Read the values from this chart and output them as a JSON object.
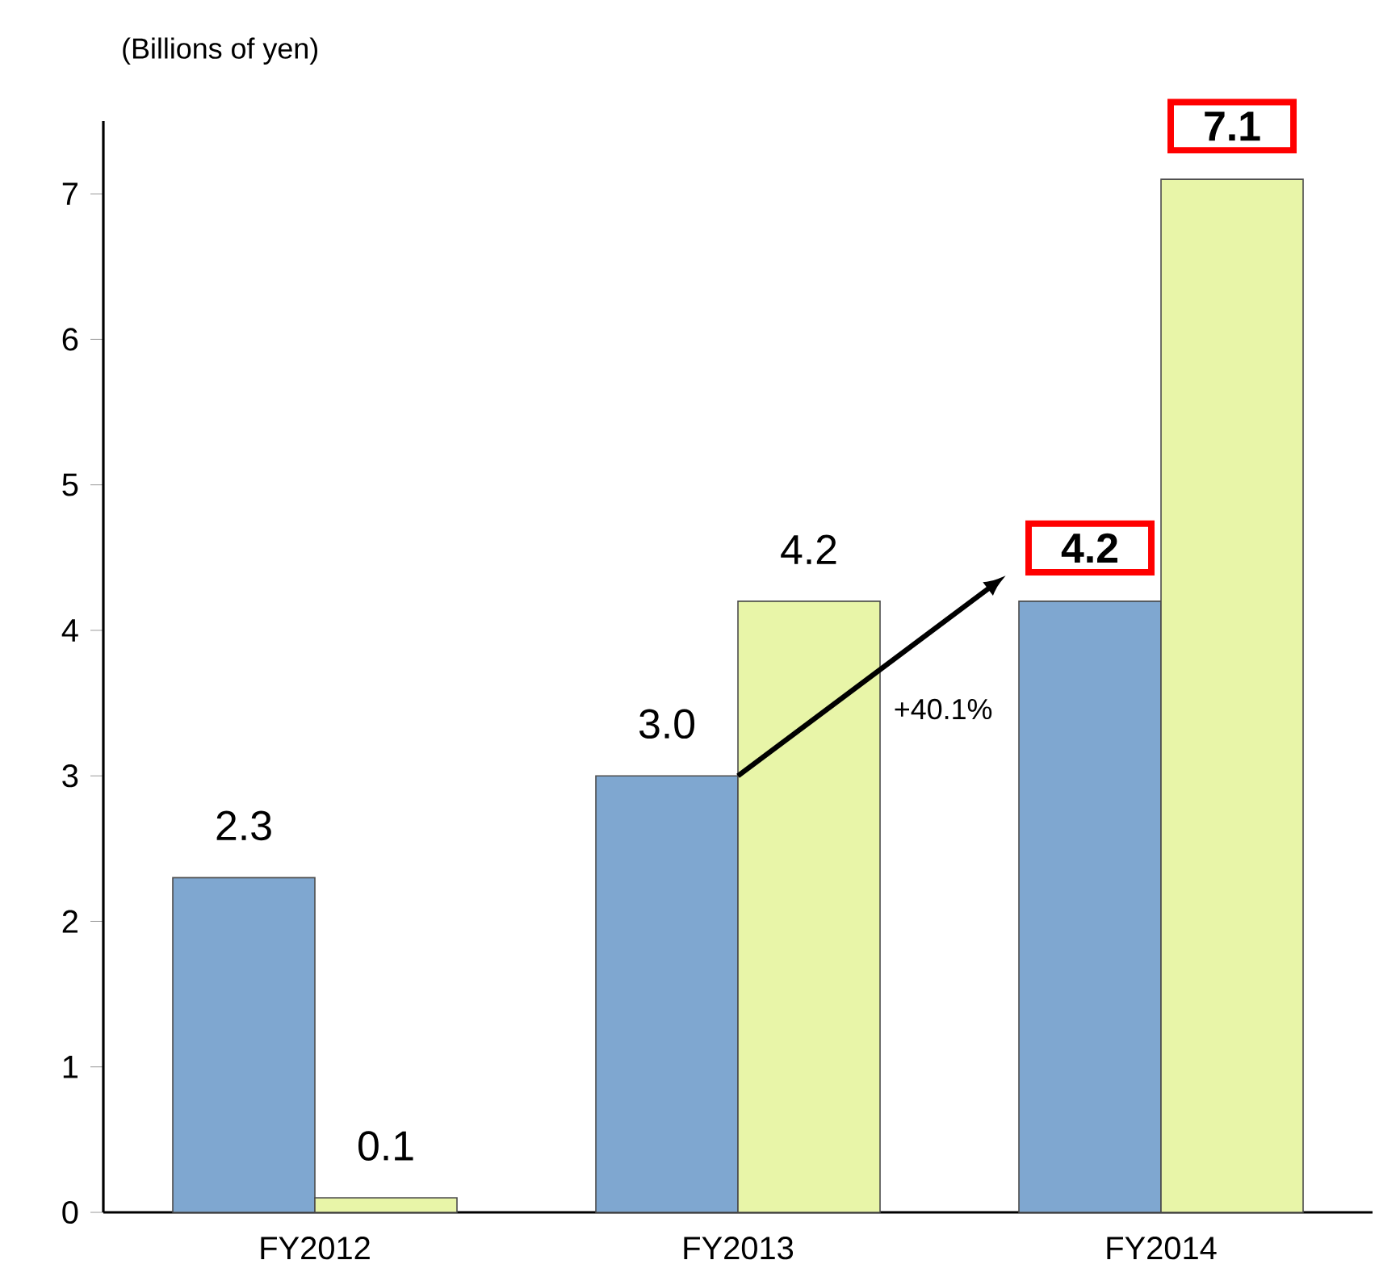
{
  "chart_data": {
    "type": "bar",
    "ylabel": "(Billions of yen)",
    "categories": [
      "FY2012",
      "FY2013",
      "FY2014"
    ],
    "series": [
      {
        "color": "#7fa7d0",
        "values": [
          2.3,
          3.0,
          4.2
        ],
        "value_labels": [
          "2.3",
          "3.0",
          "**4.2**"
        ]
      },
      {
        "color": "#e8f5a8",
        "values": [
          0.1,
          4.2,
          7.1
        ],
        "value_labels": [
          "0.1",
          "4.2",
          "**7.1**"
        ]
      }
    ],
    "ylim": [
      0,
      7.5
    ],
    "yticks": [
      0,
      1,
      2,
      3,
      4,
      5,
      6,
      7
    ],
    "grid": false,
    "annotations": [
      "+40.1%"
    ]
  }
}
